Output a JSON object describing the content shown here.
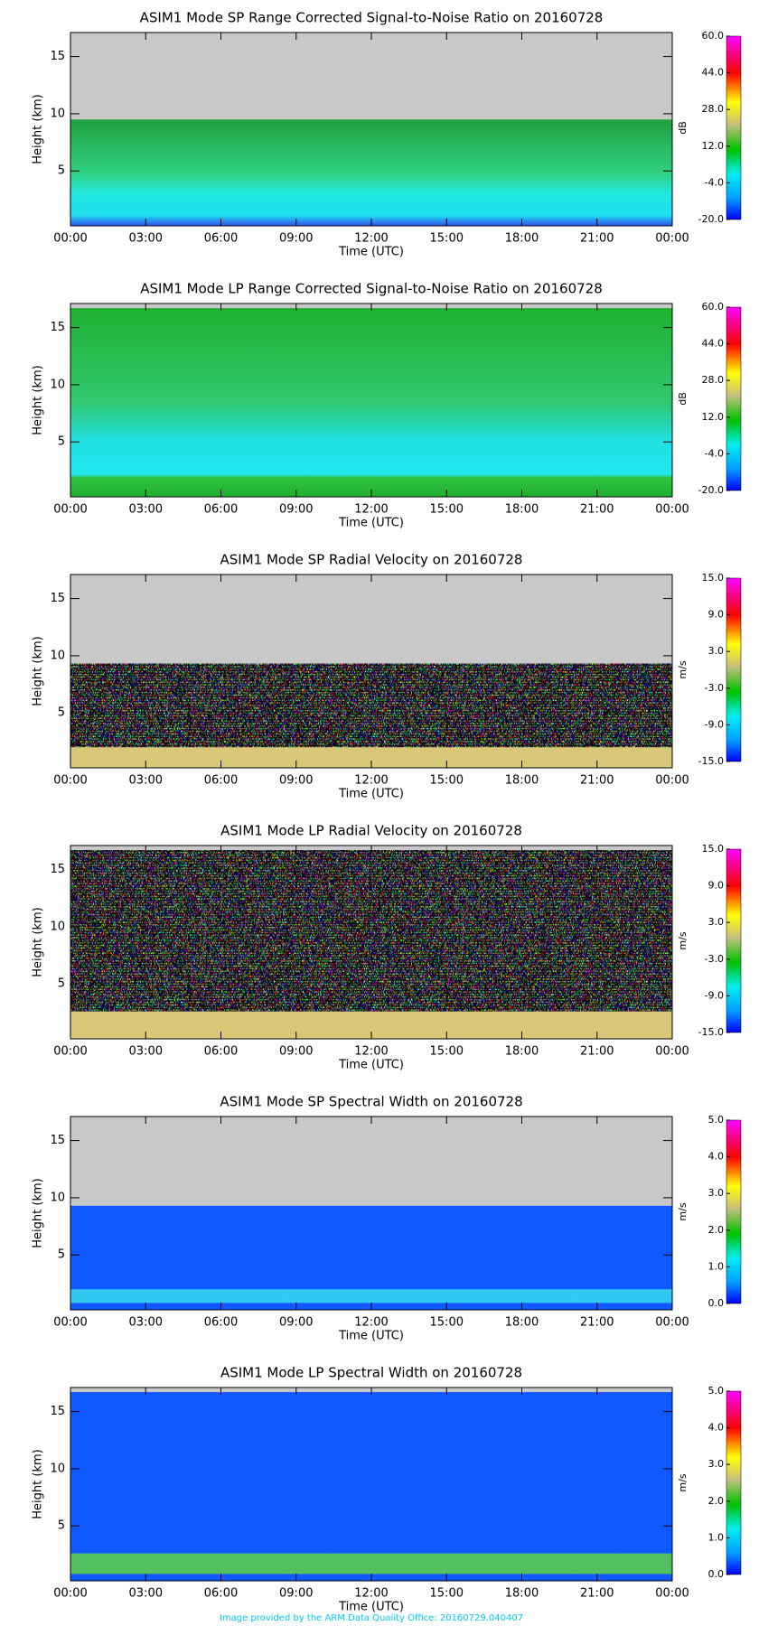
{
  "chart_data": [
    {
      "type": "heatmap",
      "title": "ASIM1 Mode SP Range Corrected Signal-to-Noise Ratio on 20160728",
      "x_label": "Time (UTC)",
      "y_label": "Height (km)",
      "xlim": [
        0,
        24
      ],
      "xticks": [
        {
          "value": 0,
          "label": "00:00"
        },
        {
          "value": 3,
          "label": "03:00"
        },
        {
          "value": 6,
          "label": "06:00"
        },
        {
          "value": 9,
          "label": "09:00"
        },
        {
          "value": 12,
          "label": "12:00"
        },
        {
          "value": 15,
          "label": "15:00"
        },
        {
          "value": 18,
          "label": "18:00"
        },
        {
          "value": 21,
          "label": "21:00"
        },
        {
          "value": 24,
          "label": "00:00"
        }
      ],
      "ylim": [
        0.2,
        17.1
      ],
      "yticks": [
        5,
        10,
        15
      ],
      "data_top": 9.5,
      "missing_color": "#c8c8c8",
      "colorbar": {
        "label": "dB",
        "lim": [
          -20,
          60
        ],
        "ticks": [
          {
            "value": -20,
            "label": "-20.0"
          },
          {
            "value": -4,
            "label": "-4.0"
          },
          {
            "value": 12,
            "label": "12.0"
          },
          {
            "value": 28,
            "label": "28.0"
          },
          {
            "value": 44,
            "label": "44.0"
          },
          {
            "value": 60,
            "label": "60.0"
          }
        ]
      }
    },
    {
      "type": "heatmap",
      "title": "ASIM1 Mode LP Range Corrected Signal-to-Noise Ratio on 20160728",
      "x_label": "Time (UTC)",
      "y_label": "Height (km)",
      "xlim": [
        0,
        24
      ],
      "xticks": [
        {
          "value": 0,
          "label": "00:00"
        },
        {
          "value": 3,
          "label": "03:00"
        },
        {
          "value": 6,
          "label": "06:00"
        },
        {
          "value": 9,
          "label": "09:00"
        },
        {
          "value": 12,
          "label": "12:00"
        },
        {
          "value": 15,
          "label": "15:00"
        },
        {
          "value": 18,
          "label": "18:00"
        },
        {
          "value": 21,
          "label": "21:00"
        },
        {
          "value": 24,
          "label": "00:00"
        }
      ],
      "ylim": [
        0.2,
        17.1
      ],
      "yticks": [
        5,
        10,
        15
      ],
      "data_top": 16.7,
      "missing_color": "#c8c8c8",
      "colorbar": {
        "label": "dB",
        "lim": [
          -20,
          60
        ],
        "ticks": [
          {
            "value": -20,
            "label": "-20.0"
          },
          {
            "value": -4,
            "label": "-4.0"
          },
          {
            "value": 12,
            "label": "12.0"
          },
          {
            "value": 28,
            "label": "28.0"
          },
          {
            "value": 44,
            "label": "44.0"
          },
          {
            "value": 60,
            "label": "60.0"
          }
        ]
      }
    },
    {
      "type": "heatmap",
      "title": "ASIM1 Mode SP Radial Velocity  on 20160728",
      "x_label": "Time (UTC)",
      "y_label": "Height (km)",
      "xlim": [
        0,
        24
      ],
      "xticks": [
        {
          "value": 0,
          "label": "00:00"
        },
        {
          "value": 3,
          "label": "03:00"
        },
        {
          "value": 6,
          "label": "06:00"
        },
        {
          "value": 9,
          "label": "09:00"
        },
        {
          "value": 12,
          "label": "12:00"
        },
        {
          "value": 15,
          "label": "15:00"
        },
        {
          "value": 18,
          "label": "18:00"
        },
        {
          "value": 21,
          "label": "21:00"
        },
        {
          "value": 24,
          "label": "00:00"
        }
      ],
      "ylim": [
        0.2,
        17.1
      ],
      "yticks": [
        5,
        10,
        15
      ],
      "data_top": 9.3,
      "missing_color": "#c8c8c8",
      "colorbar": {
        "label": "m/s",
        "lim": [
          -15,
          15
        ],
        "ticks": [
          {
            "value": -15,
            "label": "-15.0"
          },
          {
            "value": -9,
            "label": "-9.0"
          },
          {
            "value": -3,
            "label": "-3.0"
          },
          {
            "value": 3,
            "label": "3.0"
          },
          {
            "value": 9,
            "label": "9.0"
          },
          {
            "value": 15,
            "label": "15.0"
          }
        ]
      }
    },
    {
      "type": "heatmap",
      "title": "ASIM1 Mode LP Radial Velocity  on 20160728",
      "x_label": "Time (UTC)",
      "y_label": "Height (km)",
      "xlim": [
        0,
        24
      ],
      "xticks": [
        {
          "value": 0,
          "label": "00:00"
        },
        {
          "value": 3,
          "label": "03:00"
        },
        {
          "value": 6,
          "label": "06:00"
        },
        {
          "value": 9,
          "label": "09:00"
        },
        {
          "value": 12,
          "label": "12:00"
        },
        {
          "value": 15,
          "label": "15:00"
        },
        {
          "value": 18,
          "label": "18:00"
        },
        {
          "value": 21,
          "label": "21:00"
        },
        {
          "value": 24,
          "label": "00:00"
        }
      ],
      "ylim": [
        0.2,
        17.1
      ],
      "yticks": [
        5,
        10,
        15
      ],
      "data_top": 16.7,
      "missing_color": "#c8c8c8",
      "colorbar": {
        "label": "m/s",
        "lim": [
          -15,
          15
        ],
        "ticks": [
          {
            "value": -15,
            "label": "-15.0"
          },
          {
            "value": -9,
            "label": "-9.0"
          },
          {
            "value": -3,
            "label": "-3.0"
          },
          {
            "value": 3,
            "label": "3.0"
          },
          {
            "value": 9,
            "label": "9.0"
          },
          {
            "value": 15,
            "label": "15.0"
          }
        ]
      }
    },
    {
      "type": "heatmap",
      "title": "ASIM1 Mode SP Spectral Width  on 20160728",
      "x_label": "Time (UTC)",
      "y_label": "Height (km)",
      "xlim": [
        0,
        24
      ],
      "xticks": [
        {
          "value": 0,
          "label": "00:00"
        },
        {
          "value": 3,
          "label": "03:00"
        },
        {
          "value": 6,
          "label": "06:00"
        },
        {
          "value": 9,
          "label": "09:00"
        },
        {
          "value": 12,
          "label": "12:00"
        },
        {
          "value": 15,
          "label": "15:00"
        },
        {
          "value": 18,
          "label": "18:00"
        },
        {
          "value": 21,
          "label": "21:00"
        },
        {
          "value": 24,
          "label": "00:00"
        }
      ],
      "ylim": [
        0.2,
        17.1
      ],
      "yticks": [
        5,
        10,
        15
      ],
      "data_top": 9.3,
      "missing_color": "#c8c8c8",
      "colorbar": {
        "label": "m/s",
        "lim": [
          0,
          5
        ],
        "ticks": [
          {
            "value": 0,
            "label": "0.0"
          },
          {
            "value": 1,
            "label": "1.0"
          },
          {
            "value": 2,
            "label": "2.0"
          },
          {
            "value": 3,
            "label": "3.0"
          },
          {
            "value": 4,
            "label": "4.0"
          },
          {
            "value": 5,
            "label": "5.0"
          }
        ]
      }
    },
    {
      "type": "heatmap",
      "title": "ASIM1 Mode LP Spectral Width  on 20160728",
      "x_label": "Time (UTC)",
      "y_label": "Height (km)",
      "xlim": [
        0,
        24
      ],
      "xticks": [
        {
          "value": 0,
          "label": "00:00"
        },
        {
          "value": 3,
          "label": "03:00"
        },
        {
          "value": 6,
          "label": "06:00"
        },
        {
          "value": 9,
          "label": "09:00"
        },
        {
          "value": 12,
          "label": "12:00"
        },
        {
          "value": 15,
          "label": "15:00"
        },
        {
          "value": 18,
          "label": "18:00"
        },
        {
          "value": 21,
          "label": "21:00"
        },
        {
          "value": 24,
          "label": "00:00"
        }
      ],
      "ylim": [
        0.2,
        17.1
      ],
      "yticks": [
        5,
        10,
        15
      ],
      "data_top": 16.7,
      "missing_color": "#c8c8c8",
      "colorbar": {
        "label": "m/s",
        "lim": [
          0,
          5
        ],
        "ticks": [
          {
            "value": 0,
            "label": "0.0"
          },
          {
            "value": 1,
            "label": "1.0"
          },
          {
            "value": 2,
            "label": "2.0"
          },
          {
            "value": 3,
            "label": "3.0"
          },
          {
            "value": 4,
            "label": "4.0"
          },
          {
            "value": 5,
            "label": "5.0"
          }
        ]
      }
    }
  ],
  "footer": "Image provided by the ARM Data Quality Office: 20160729.040407"
}
